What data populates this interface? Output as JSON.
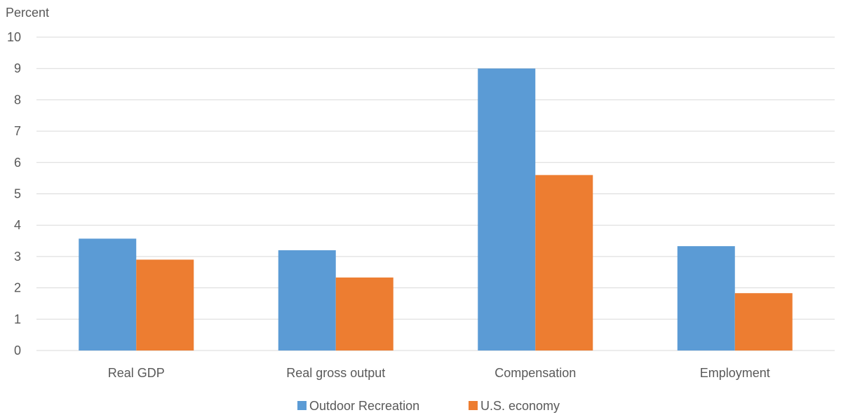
{
  "chart_data": {
    "type": "bar",
    "title": "",
    "xlabel": "",
    "ylabel": "Percent",
    "ylim": [
      0,
      10
    ],
    "yticks": [
      0,
      1,
      2,
      3,
      4,
      5,
      6,
      7,
      8,
      9,
      10
    ],
    "grid": true,
    "legend_position": "bottom",
    "categories": [
      "Real GDP",
      "Real gross output",
      "Compensation",
      "Employment"
    ],
    "series": [
      {
        "name": "Outdoor Recreation",
        "color": "#5B9BD5",
        "values": [
          3.57,
          3.2,
          9.0,
          3.33
        ]
      },
      {
        "name": "U.S. economy",
        "color": "#ED7D31",
        "values": [
          2.9,
          2.33,
          5.6,
          1.83
        ]
      }
    ]
  }
}
